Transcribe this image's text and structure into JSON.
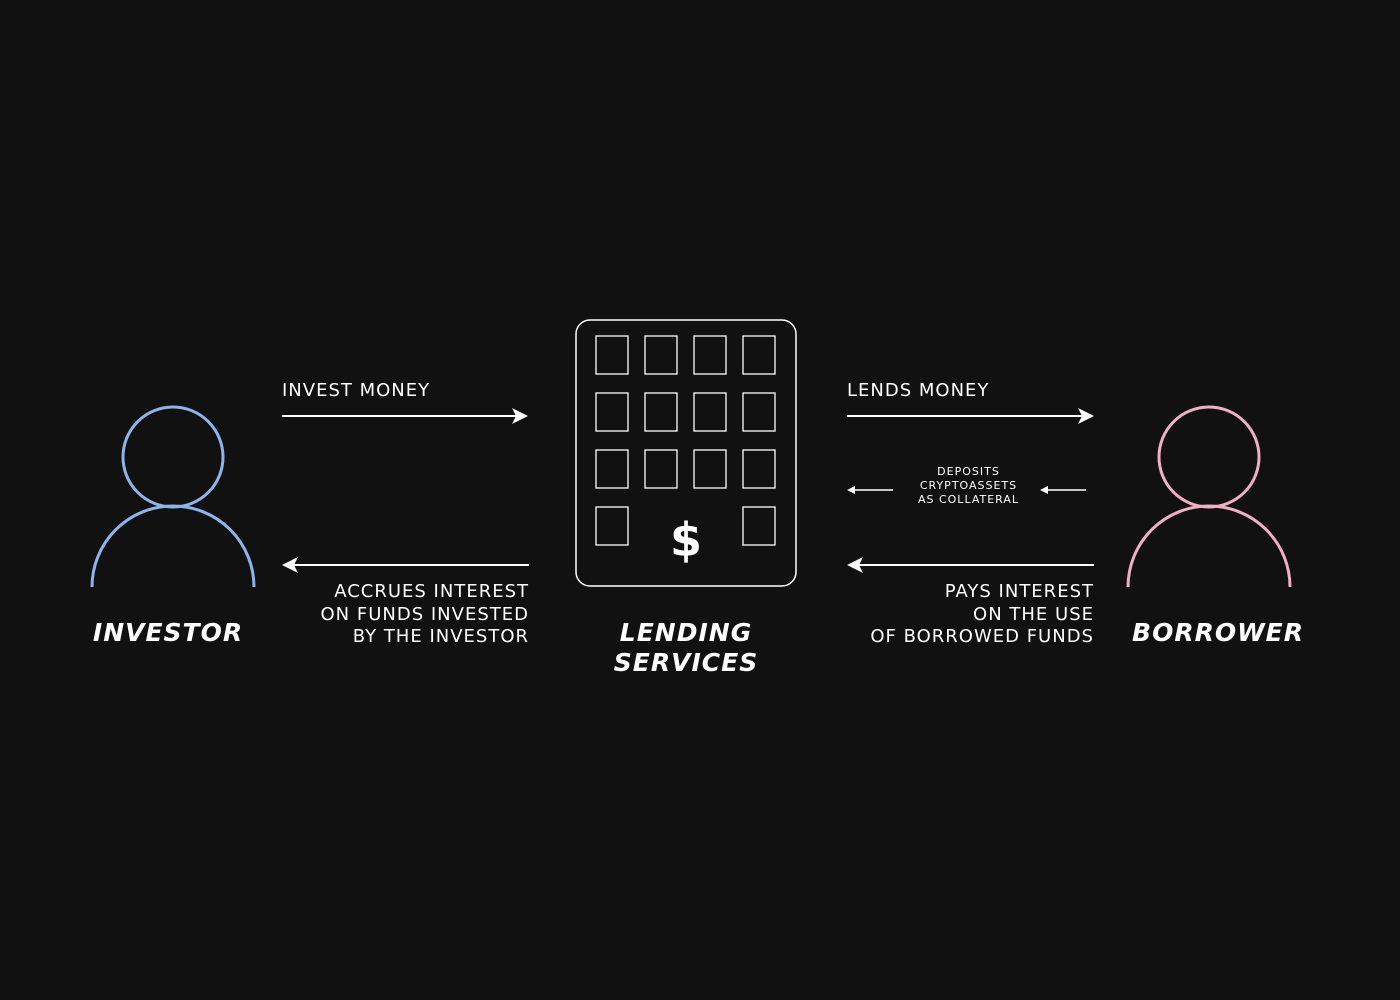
{
  "entities": {
    "investor": {
      "label": "INVESTOR",
      "color": "#8fb4ea"
    },
    "lending": {
      "label_lines": [
        "LENDING",
        "SERVICES"
      ],
      "symbol": "$",
      "icon": "building-icon"
    },
    "borrower": {
      "label": "BORROWER",
      "color": "#eeb0c2"
    }
  },
  "flows": {
    "invest_money": "INVEST MONEY",
    "accrues_interest": [
      "ACCRUES INTEREST",
      "ON FUNDS INVESTED",
      "BY THE INVESTOR"
    ],
    "lends_money": "LENDS MONEY",
    "deposits_collateral": [
      "DEPOSITS",
      "CRYPTOASSETS",
      "AS COLLATERAL"
    ],
    "pays_interest": [
      "PAYS INTEREST",
      "ON THE USE",
      "OF BORROWED FUNDS"
    ]
  },
  "colors": {
    "background": "#111111",
    "foreground": "#ffffff",
    "investor": "#8fb4ea",
    "borrower": "#eeb0c2"
  }
}
